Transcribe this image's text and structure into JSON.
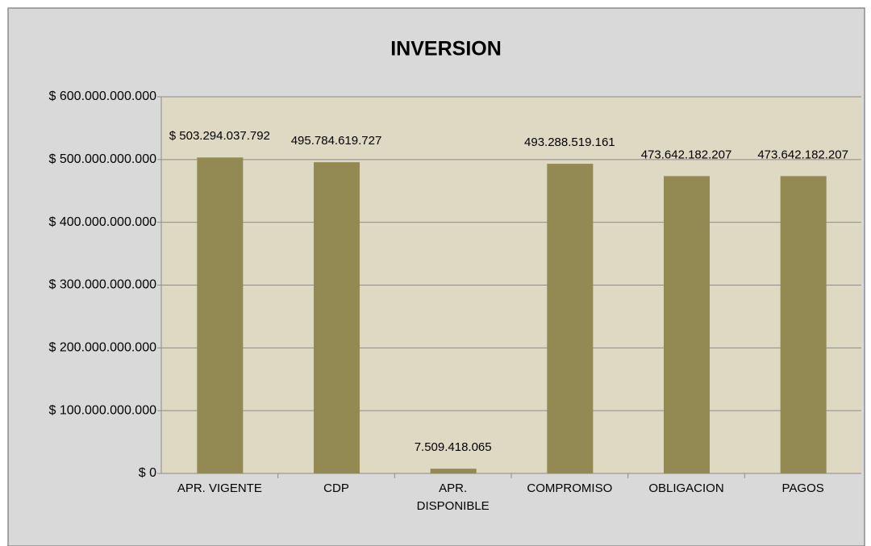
{
  "chart_data": {
    "type": "bar",
    "title": "INVERSION",
    "categories": [
      "APR. VIGENTE",
      "CDP",
      "APR. DISPONIBLE",
      "COMPROMISO",
      "OBLIGACION",
      "PAGOS"
    ],
    "values": [
      503294037792,
      495784619727,
      7509418065,
      493288519161,
      473642182207,
      473642182207
    ],
    "value_labels": [
      "$ 503.294.037.792",
      "495.784.619.727",
      "7.509.418.065",
      "493.288.519.161",
      "473.642.182.207",
      "473.642.182.207"
    ],
    "color": "#938953",
    "ylim": [
      0,
      600000000000
    ],
    "yticks": [
      {
        "value": 0,
        "label": "$ 0"
      },
      {
        "value": 100000000000,
        "label": "$ 100.000.000.000"
      },
      {
        "value": 200000000000,
        "label": "$ 200.000.000.000"
      },
      {
        "value": 300000000000,
        "label": "$ 300.000.000.000"
      },
      {
        "value": 400000000000,
        "label": "$ 400.000.000.000"
      },
      {
        "value": 500000000000,
        "label": "$ 500.000.000.000"
      },
      {
        "value": 600000000000,
        "label": "$ 600.000.000.000"
      }
    ],
    "grid": true
  }
}
